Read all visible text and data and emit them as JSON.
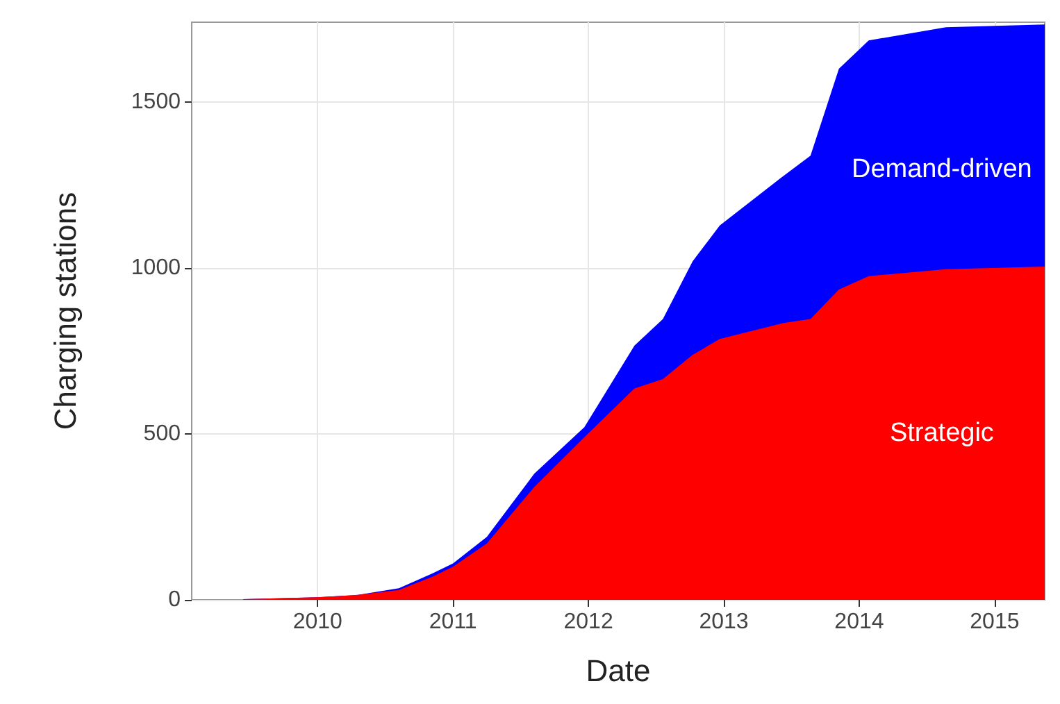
{
  "chart_data": {
    "type": "area",
    "stacked": true,
    "xlabel": "Date",
    "ylabel": "Charging stations",
    "x": [
      2009.45,
      2010.0,
      2010.3,
      2010.6,
      2010.85,
      2011.0,
      2011.25,
      2011.6,
      2011.97,
      2012.34,
      2012.55,
      2012.77,
      2012.97,
      2013.44,
      2013.64,
      2013.85,
      2014.07,
      2014.64,
      2015.37
    ],
    "series": [
      {
        "name": "Strategic",
        "color": "#ff0000",
        "values": [
          2,
          8,
          15,
          30,
          70,
          100,
          170,
          340,
          490,
          637,
          665,
          738,
          786,
          834,
          846,
          935,
          975,
          996,
          1004
        ]
      },
      {
        "name": "Demand-driven",
        "color": "#0000ff",
        "values": [
          0,
          0,
          0,
          5,
          10,
          10,
          20,
          40,
          30,
          129,
          181,
          282,
          342,
          443,
          492,
          665,
          710,
          729,
          729
        ]
      }
    ],
    "xlim": [
      2009.07,
      2015.37
    ],
    "xticks": [
      2010,
      2011,
      2012,
      2013,
      2014,
      2015
    ],
    "ylim": [
      0,
      1740
    ],
    "yticks": [
      0,
      500,
      1000,
      1500
    ],
    "grid": true,
    "legend": false
  }
}
